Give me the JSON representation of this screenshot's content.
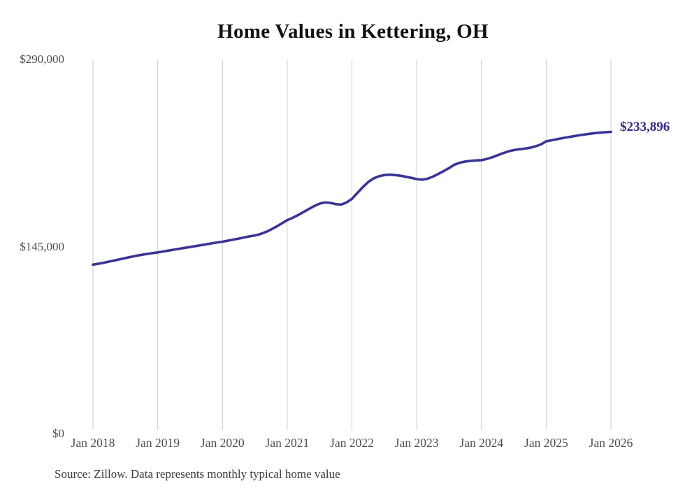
{
  "chart": {
    "title": "Home Values in Kettering, OH",
    "end_label": "$233,896",
    "source": "Source: Zillow. Data represents monthly typical home value"
  },
  "colors": {
    "line": "#3a3497",
    "end_label": "#2e2a8f",
    "gridline": "#cccccc",
    "axis_text": "#4d4d4d",
    "title_text": "#111111"
  },
  "chart_data": {
    "type": "line",
    "title": "Home Values in Kettering, OH",
    "series_name": "Monthly typical home value (USD)",
    "x_start": "2018-01",
    "x_frequency": "monthly",
    "x_tick_labels": [
      "Jan 2018",
      "Jan 2019",
      "Jan 2020",
      "Jan 2021",
      "Jan 2022",
      "Jan 2023",
      "Jan 2024",
      "Jan 2025",
      "Jan 2026"
    ],
    "y_ticks": [
      {
        "label": "$0",
        "value": 0
      },
      {
        "label": "$145,000",
        "value": 145000
      },
      {
        "label": "$290,000",
        "value": 290000
      }
    ],
    "ylim": [
      0,
      290000
    ],
    "grid": "vertical-only",
    "legend": "none",
    "line_color": "#3a3497",
    "end_label": "$233,896",
    "final_value": 233896,
    "values": [
      131000,
      131700,
      132500,
      133400,
      134300,
      135200,
      136100,
      137000,
      137900,
      138600,
      139300,
      139900,
      140500,
      141200,
      141900,
      142600,
      143300,
      144000,
      144700,
      145400,
      146100,
      146800,
      147500,
      148200,
      148800,
      149600,
      150400,
      151200,
      152100,
      152900,
      153600,
      154700,
      156200,
      158200,
      160500,
      163000,
      165500,
      167300,
      169400,
      171700,
      174100,
      176400,
      178300,
      179200,
      178900,
      177900,
      177600,
      179200,
      182000,
      186500,
      191000,
      195000,
      197800,
      199500,
      200400,
      200700,
      200400,
      199900,
      199100,
      198300,
      197300,
      196900,
      197600,
      199200,
      201300,
      203500,
      205800,
      208500,
      210000,
      210900,
      211400,
      211800,
      212000,
      212900,
      214200,
      215800,
      217400,
      218800,
      219800,
      220400,
      220900,
      221600,
      222700,
      224100,
      226600,
      227400,
      228200,
      229000,
      229800,
      230500,
      231200,
      231800,
      232400,
      232900,
      233300,
      233650,
      233896
    ]
  }
}
